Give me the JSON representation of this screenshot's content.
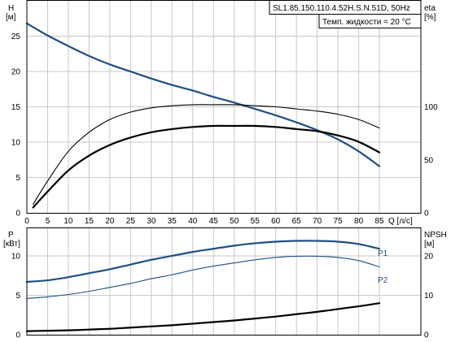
{
  "info": {
    "model": "SL1.85.150.110.4.52H.S.N.51D, 50Hz",
    "liquid_temp": "Темп. жидкости = 20 °C"
  },
  "colors": {
    "curve_blue": "#1f4f86",
    "curve_black": "#000000",
    "grid": "#c8c8c8",
    "frame": "#000000"
  },
  "chart_data": [
    {
      "type": "line",
      "panel": "upper",
      "y_left": {
        "name": "H",
        "unit": "[м]",
        "ylim": [
          0,
          30
        ],
        "ticks": [
          0,
          5,
          10,
          15,
          20,
          25
        ]
      },
      "y_right": {
        "name": "eta",
        "unit": "[%]",
        "ylim": [
          0,
          200
        ],
        "ticks": [
          0,
          50,
          100
        ]
      },
      "x": {
        "unit": "Q [л/с]",
        "xlim": [
          0,
          95
        ],
        "ticks": [
          0,
          5,
          10,
          15,
          20,
          25,
          30,
          35,
          40,
          45,
          50,
          55,
          60,
          65,
          70,
          75,
          80,
          85
        ]
      },
      "grid": true,
      "series": [
        {
          "key": "H",
          "axis": "left",
          "color": "#1f4f86",
          "width": 2.2,
          "x": [
            0,
            5,
            10,
            15,
            20,
            25,
            30,
            35,
            40,
            45,
            50,
            55,
            60,
            65,
            70,
            75,
            80,
            85
          ],
          "y": [
            26.8,
            25.1,
            23.6,
            22.2,
            21.0,
            20.0,
            19.0,
            18.1,
            17.3,
            16.4,
            15.6,
            14.7,
            13.8,
            12.8,
            11.7,
            10.4,
            8.7,
            6.6
          ]
        },
        {
          "key": "eta_thin",
          "axis": "right",
          "color": "#000000",
          "width": 1.1,
          "x": [
            1.5,
            5,
            10,
            15,
            20,
            25,
            30,
            35,
            40,
            45,
            50,
            55,
            60,
            65,
            70,
            75,
            80,
            85
          ],
          "y": [
            8,
            30,
            58,
            76,
            88,
            95,
            99,
            101,
            102,
            102,
            102,
            101,
            100,
            98,
            96,
            93,
            88,
            80
          ]
        },
        {
          "key": "eta_thick",
          "axis": "right",
          "color": "#000000",
          "width": 2.2,
          "x": [
            1.5,
            5,
            10,
            15,
            20,
            25,
            30,
            35,
            40,
            45,
            50,
            55,
            60,
            65,
            70,
            75,
            80,
            85
          ],
          "y": [
            5,
            20,
            40,
            54,
            64,
            71,
            76,
            79,
            81,
            82,
            82,
            82,
            81,
            79,
            77,
            73,
            67,
            57
          ]
        }
      ]
    },
    {
      "type": "line",
      "panel": "lower",
      "y_left": {
        "name": "P",
        "unit": "[кВт]",
        "ylim": [
          0,
          13.5
        ],
        "ticks": [
          0,
          5,
          10
        ]
      },
      "y_right": {
        "name": "NPSH",
        "unit": "[м]",
        "ylim": [
          0,
          27
        ],
        "ticks": [
          0,
          10,
          20
        ]
      },
      "x": {
        "xlim": [
          0,
          95
        ]
      },
      "grid": true,
      "series": [
        {
          "key": "P1",
          "name": "P1",
          "axis": "left",
          "color": "#1f4f86",
          "width": 2.2,
          "x": [
            0,
            5,
            10,
            15,
            20,
            25,
            30,
            35,
            40,
            45,
            50,
            55,
            60,
            65,
            70,
            75,
            80,
            85
          ],
          "y": [
            6.7,
            6.9,
            7.3,
            7.8,
            8.3,
            8.9,
            9.5,
            10.0,
            10.5,
            10.9,
            11.3,
            11.6,
            11.8,
            11.9,
            11.9,
            11.8,
            11.5,
            10.9
          ]
        },
        {
          "key": "P2",
          "name": "P2",
          "axis": "left",
          "color": "#1f4f86",
          "width": 1.1,
          "x": [
            0,
            5,
            10,
            15,
            20,
            25,
            30,
            35,
            40,
            45,
            50,
            55,
            60,
            65,
            70,
            75,
            80,
            85
          ],
          "y": [
            4.6,
            4.8,
            5.1,
            5.5,
            6.0,
            6.5,
            7.1,
            7.6,
            8.2,
            8.7,
            9.1,
            9.5,
            9.8,
            9.95,
            9.95,
            9.8,
            9.4,
            8.6
          ]
        },
        {
          "key": "NPSH",
          "axis": "right",
          "color": "#000000",
          "width": 2.2,
          "x": [
            0,
            5,
            10,
            15,
            20,
            25,
            30,
            35,
            40,
            45,
            50,
            55,
            60,
            65,
            70,
            75,
            80,
            85
          ],
          "y": [
            0.9,
            1.0,
            1.1,
            1.3,
            1.5,
            1.8,
            2.1,
            2.4,
            2.8,
            3.2,
            3.6,
            4.1,
            4.6,
            5.2,
            5.8,
            6.5,
            7.2,
            8.0
          ]
        }
      ]
    }
  ]
}
